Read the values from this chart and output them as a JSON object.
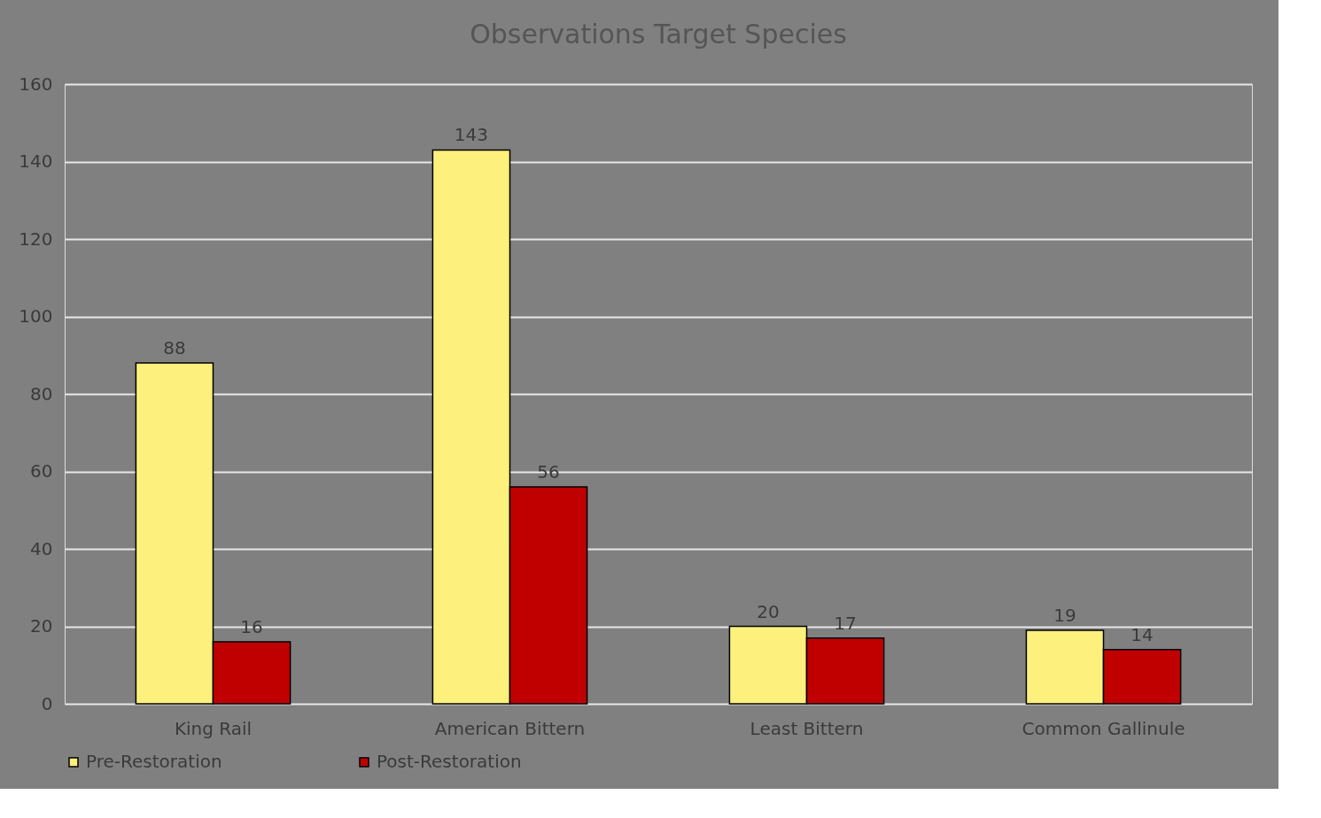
{
  "chart_data": {
    "type": "bar",
    "title": "Observations Target Species",
    "categories": [
      "King Rail",
      "American Bittern",
      "Least Bittern",
      "Common Gallinule"
    ],
    "series": [
      {
        "name": "Pre-Restoration",
        "color": "#fef07c",
        "values": [
          88,
          143,
          20,
          19
        ]
      },
      {
        "name": "Post-Restoration",
        "color": "#c00000",
        "values": [
          16,
          56,
          17,
          14
        ]
      }
    ],
    "ylim": [
      0,
      160
    ],
    "yticks": [
      0,
      20,
      40,
      60,
      80,
      100,
      120,
      140,
      160
    ],
    "grid": "y",
    "legend": "bottom",
    "data_labels": true
  }
}
